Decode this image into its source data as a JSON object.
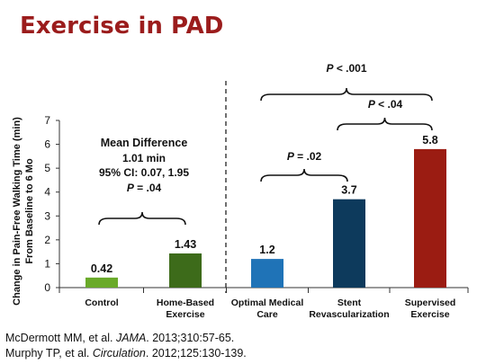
{
  "slide": {
    "title": "Exercise in PAD"
  },
  "chart_data": {
    "type": "bar",
    "ylabel_lines": [
      "Change in Pain-Free Walking Time (min)",
      "From Baseline to 6 Mo"
    ],
    "ylim": [
      0,
      7
    ],
    "yticks": [
      "0",
      "1",
      "2",
      "3",
      "4",
      "5",
      "6",
      "7"
    ],
    "categories": [
      [
        "Control"
      ],
      [
        "Home-Based",
        "Exercise"
      ],
      [
        "Optimal Medical",
        "Care"
      ],
      [
        "Stent",
        "Revascularization"
      ],
      [
        "Supervised",
        "Exercise"
      ]
    ],
    "values": [
      0.42,
      1.43,
      1.2,
      3.7,
      5.8
    ],
    "value_labels": [
      "0.42",
      "1.43",
      "1.2",
      "3.7",
      "5.8"
    ],
    "colors": [
      "#6aaa2a",
      "#3d6b1a",
      "#1f73b7",
      "#0d3a5c",
      "#9b1c12"
    ],
    "divider": "dashed vertical line between Home-Based Exercise and Optimal Medical Care",
    "annotations": {
      "mean_difference": [
        "Mean Difference",
        "1.01 min",
        "95% CI: 0.07, 1.95",
        "P = .04"
      ],
      "p_omc_stent": "P = .02",
      "p_stent_supervised": "P < .04",
      "p_omc_supervised": "P < .001"
    }
  },
  "references": [
    {
      "before": "McDermott MM, et al. ",
      "italic": "JAMA",
      "after": ". 2013;310:57-65."
    },
    {
      "before": "Murphy TP, et al. ",
      "italic": "Circulation",
      "after": ". 2012;125:130-139."
    }
  ]
}
